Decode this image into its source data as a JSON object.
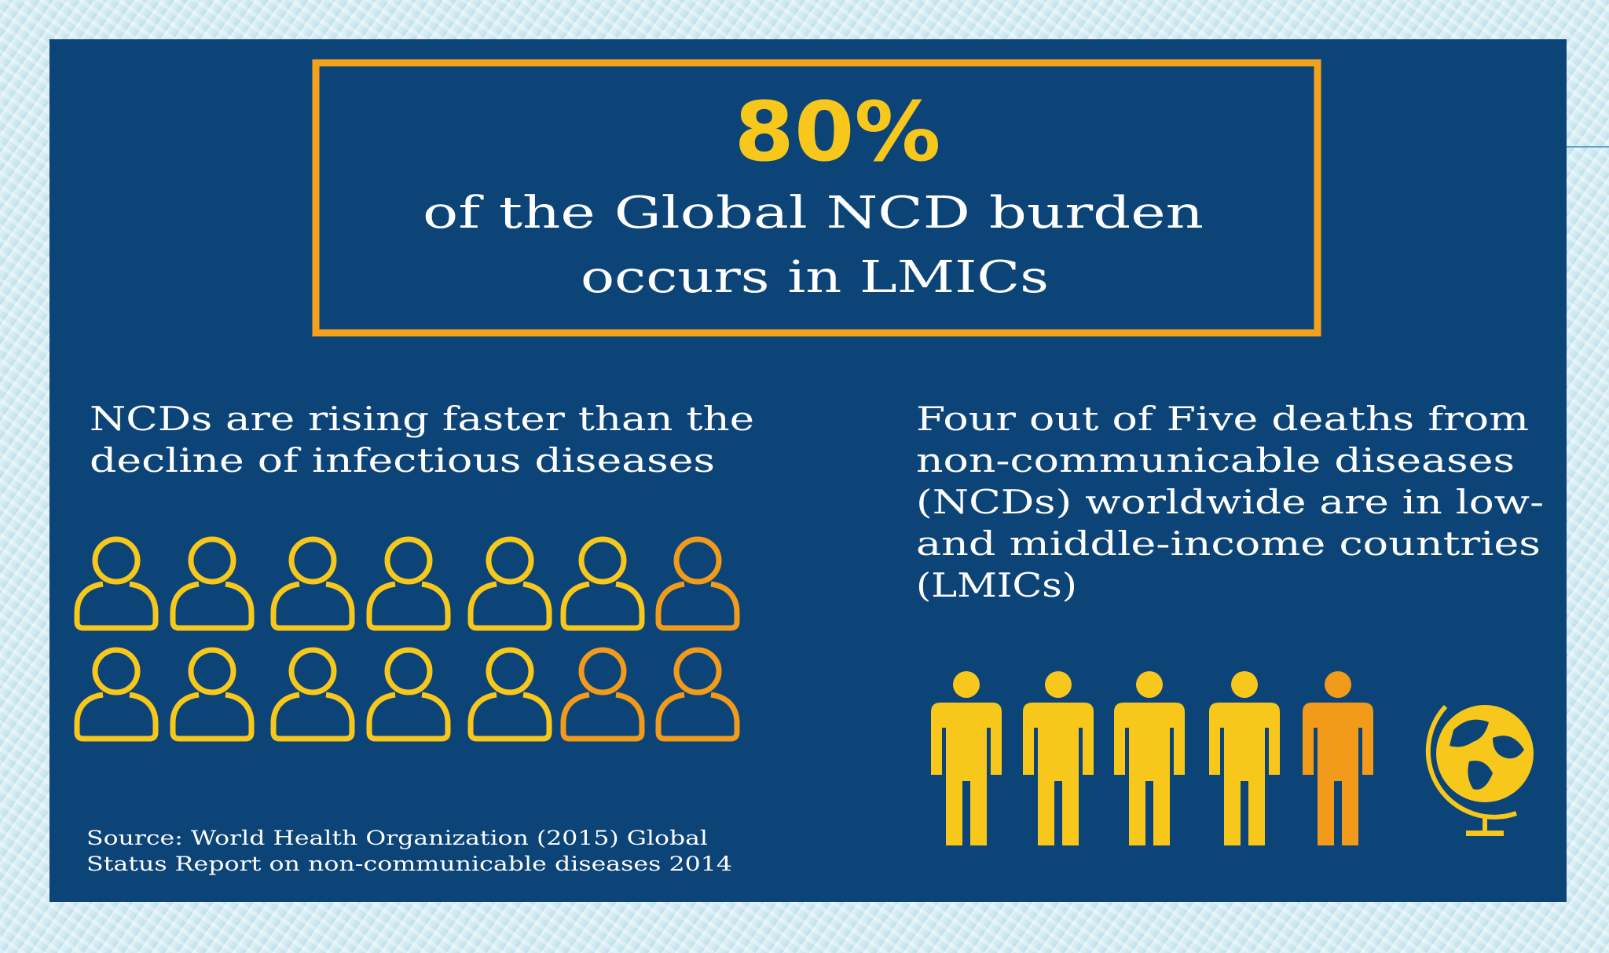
{
  "headline": {
    "figure": "80%",
    "lines": [
      "of the Global NCD burden",
      "occurs in LMICs"
    ]
  },
  "left_panel": {
    "lines": [
      "NCDs are rising faster than the",
      "decline of infectious diseases"
    ]
  },
  "right_panel": {
    "lines": [
      "Four out of Five deaths from",
      "non-communicable diseases",
      "(NCDs) worldwide are in low-",
      "and middle-income countries",
      "(LMICs)"
    ]
  },
  "source": {
    "lines": [
      "Source: World Health Organization (2015) Global",
      "Status Report on non-communicable diseases 2014"
    ]
  }
}
